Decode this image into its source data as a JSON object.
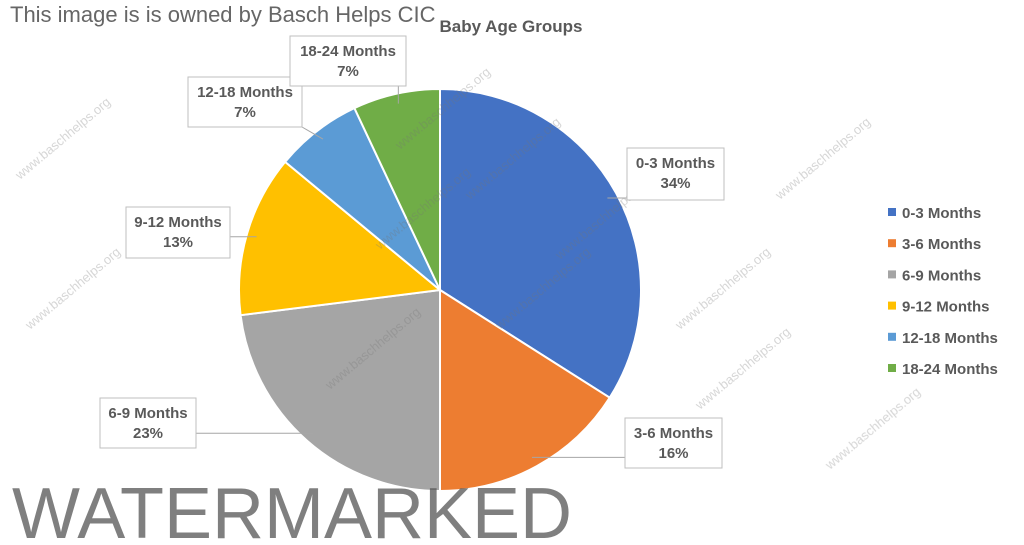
{
  "chart_data": {
    "type": "pie",
    "title": "Baby Age Groups",
    "categories": [
      "0-3 Months",
      "3-6 Months",
      "6-9 Months",
      "9-12 Months",
      "12-18 Months",
      "18-24 Months"
    ],
    "values": [
      34,
      16,
      23,
      13,
      7,
      7
    ],
    "data_labels": [
      "34%",
      "16%",
      "23%",
      "13%",
      "7%",
      "7%"
    ],
    "colors": [
      "#4472c4",
      "#ed7d31",
      "#a5a5a5",
      "#ffc000",
      "#5b9bd5",
      "#70ad47"
    ],
    "legend_position": "right",
    "start_angle": "top, clockwise"
  },
  "watermark": {
    "big_text": "WATERMARKED",
    "owner_text": "This image is is owned by Basch Helps CIC",
    "tile_text": "www.baschhelps.org"
  }
}
